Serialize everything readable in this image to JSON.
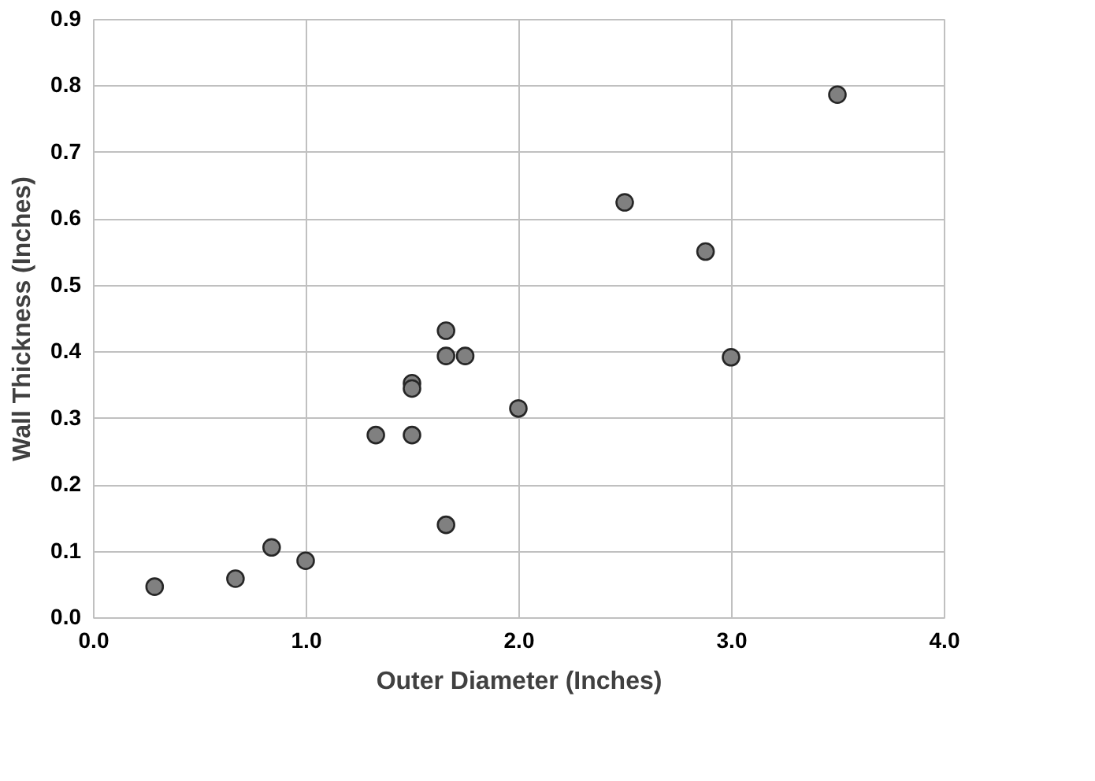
{
  "chart_data": {
    "type": "scatter",
    "xlabel": "Outer Diameter (Inches)",
    "ylabel": "Wall Thickness (Inches)",
    "x": [
      0.29,
      0.67,
      0.84,
      1.0,
      1.33,
      1.5,
      1.5,
      1.5,
      1.66,
      1.66,
      1.75,
      1.66,
      2.0,
      2.5,
      2.88,
      3.0,
      3.5
    ],
    "series": [
      {
        "color": "#808080",
        "values": [
          0.046,
          0.058,
          0.105,
          0.085,
          0.274,
          0.274,
          0.352,
          0.344,
          0.431,
          0.393,
          0.393,
          0.139,
          0.314,
          0.624,
          0.55,
          0.391,
          0.786
        ]
      }
    ],
    "xlim": [
      0,
      4
    ],
    "xticks": [
      {
        "value": 0,
        "label": "0.0"
      },
      {
        "value": 1,
        "label": "1.0"
      },
      {
        "value": 2,
        "label": "2.0"
      },
      {
        "value": 3,
        "label": "3.0"
      },
      {
        "value": 4,
        "label": "4.0"
      }
    ],
    "ylim": [
      0,
      0.9
    ],
    "yticks": [
      {
        "value": 0,
        "label": "0.0"
      },
      0.1,
      0.2,
      0.3,
      0.4,
      0.5,
      0.6,
      0.7,
      0.8,
      0.9
    ],
    "grid": true,
    "marker": "circle"
  }
}
